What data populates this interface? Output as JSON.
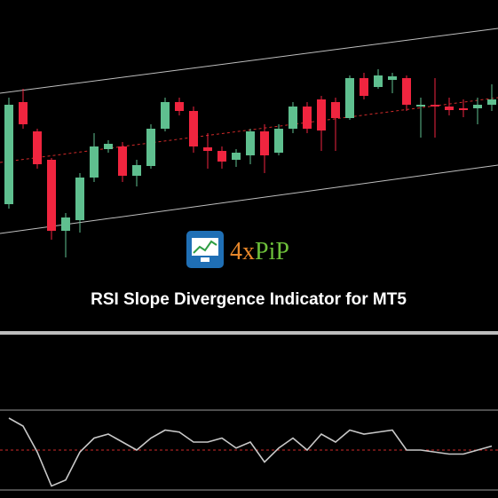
{
  "chart_data": [
    {
      "type": "candlestick",
      "open": [
        140,
        255,
        222,
        190,
        110,
        122,
        170,
        202,
        205,
        172,
        183,
        225,
        255,
        245,
        204,
        200,
        190,
        195,
        222,
        198,
        225,
        250,
        258,
        255,
        237,
        282,
        272,
        280,
        282,
        250,
        252,
        250,
        248,
        248,
        252
      ],
      "high": [
        260,
        270,
        225,
        192,
        130,
        175,
        220,
        212,
        210,
        190,
        230,
        260,
        260,
        250,
        220,
        205,
        202,
        225,
        230,
        230,
        255,
        255,
        262,
        260,
        285,
        288,
        292,
        288,
        285,
        260,
        282,
        260,
        258,
        260,
        275
      ],
      "low": [
        135,
        225,
        180,
        100,
        80,
        108,
        165,
        198,
        165,
        160,
        180,
        222,
        240,
        198,
        180,
        180,
        182,
        185,
        175,
        195,
        220,
        220,
        200,
        200,
        235,
        258,
        270,
        265,
        245,
        215,
        215,
        240,
        238,
        230,
        245
      ],
      "close": [
        252,
        230,
        185,
        110,
        125,
        170,
        205,
        208,
        172,
        184,
        225,
        255,
        245,
        205,
        200,
        188,
        198,
        222,
        195,
        225,
        250,
        225,
        223,
        237,
        282,
        262,
        285,
        284,
        252,
        252,
        250,
        246,
        246,
        252,
        258
      ],
      "ylim": [
        0,
        370
      ],
      "up_color": "#5fbf8f",
      "down_color": "#f0253f"
    },
    {
      "type": "line",
      "values": [
        66,
        62,
        49,
        32,
        35,
        49,
        56,
        58,
        54,
        50,
        56,
        60,
        59,
        54,
        54,
        56,
        51,
        54,
        44,
        51,
        56,
        50,
        58,
        54,
        60,
        58,
        59,
        60,
        50,
        50,
        49,
        48,
        48,
        50,
        52
      ],
      "color": "#c8c8c8",
      "ylim": [
        26,
        106
      ],
      "grid_levels": [
        30,
        70
      ],
      "midline": 50,
      "midline_color": "#d02a2a"
    }
  ],
  "brand": {
    "part1": "4x",
    "part2": "PiP"
  },
  "title": "RSI Slope Divergence Indicator for MT5"
}
